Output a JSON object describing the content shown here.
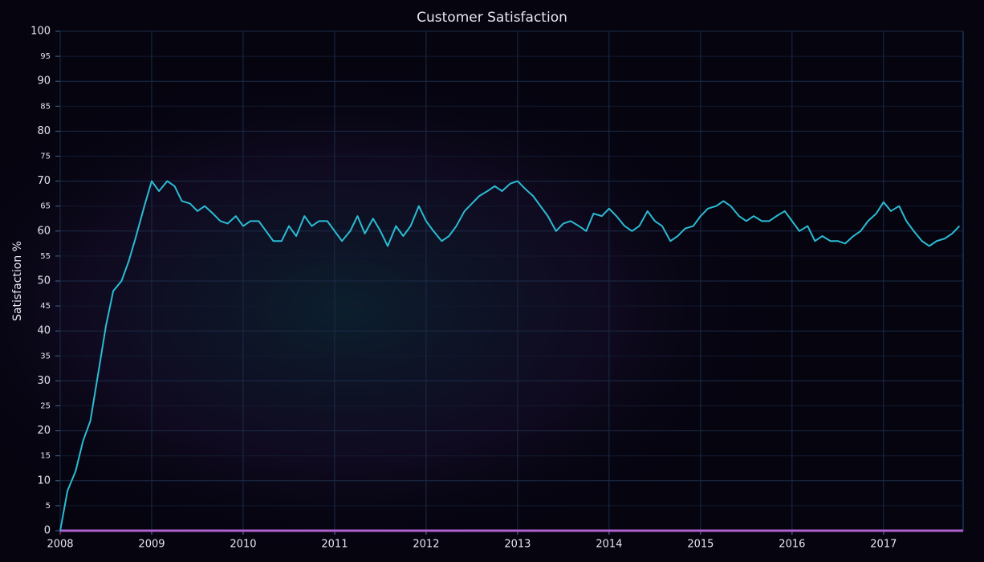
{
  "chart_data": {
    "type": "line",
    "title": "Customer Satisfaction",
    "y_label": "Satisfaction %",
    "x": [
      2008,
      2008.08,
      2008.17,
      2008.25,
      2008.33,
      2008.42,
      2008.5,
      2008.58,
      2008.67,
      2008.75,
      2008.83,
      2008.92,
      2009,
      2009.08,
      2009.17,
      2009.25,
      2009.33,
      2009.42,
      2009.5,
      2009.58,
      2009.67,
      2009.75,
      2009.83,
      2009.92,
      2010,
      2010.08,
      2010.17,
      2010.25,
      2010.33,
      2010.42,
      2010.5,
      2010.58,
      2010.67,
      2010.75,
      2010.83,
      2010.92,
      2011,
      2011.08,
      2011.17,
      2011.25,
      2011.33,
      2011.42,
      2011.5,
      2011.58,
      2011.67,
      2011.75,
      2011.83,
      2011.92,
      2012,
      2012.08,
      2012.17,
      2012.25,
      2012.33,
      2012.42,
      2012.5,
      2012.58,
      2012.67,
      2012.75,
      2012.83,
      2012.92,
      2013,
      2013.08,
      2013.17,
      2013.25,
      2013.33,
      2013.42,
      2013.5,
      2013.58,
      2013.67,
      2013.75,
      2013.83,
      2013.92,
      2014,
      2014.08,
      2014.17,
      2014.25,
      2014.33,
      2014.42,
      2014.5,
      2014.58,
      2014.67,
      2014.75,
      2014.83,
      2014.92,
      2015,
      2015.08,
      2015.17,
      2015.25,
      2015.33,
      2015.42,
      2015.5,
      2015.58,
      2015.67,
      2015.75,
      2015.83,
      2015.92,
      2016,
      2016.08,
      2016.17,
      2016.25,
      2016.33,
      2016.42,
      2016.5,
      2016.58,
      2016.67,
      2016.75,
      2016.83,
      2016.92,
      2017,
      2017.08,
      2017.17,
      2017.25,
      2017.33,
      2017.42,
      2017.5,
      2017.58,
      2017.67,
      2017.75,
      2017.83
    ],
    "series": [
      {
        "name": "Satisfaction",
        "color": "#2bbcd4",
        "values": [
          0,
          8,
          12,
          18,
          22,
          32,
          41,
          48,
          50,
          54,
          59,
          65,
          70,
          68,
          70,
          69,
          66,
          65.5,
          64,
          65,
          63.5,
          62,
          61.5,
          63,
          61,
          62,
          62,
          60,
          58,
          58,
          61,
          59,
          63,
          61,
          62,
          62,
          60,
          58,
          60,
          63,
          59.5,
          62.5,
          60,
          57,
          61,
          59,
          61,
          65,
          62,
          60,
          58,
          59,
          61,
          64,
          65.5,
          67,
          68,
          69,
          68,
          69.5,
          70,
          68.5,
          67,
          65,
          63,
          60,
          61.5,
          62,
          61,
          60,
          63.5,
          63,
          64.5,
          63,
          61,
          60,
          61,
          64,
          62,
          61,
          58,
          59,
          60.5,
          61,
          63,
          64.5,
          65,
          66,
          65,
          63,
          62,
          63,
          62,
          62,
          63,
          64,
          62,
          60,
          61,
          58,
          59,
          58,
          58,
          57.5,
          59,
          60,
          62,
          63.5,
          65.8,
          64,
          65,
          62,
          60,
          58,
          57,
          58,
          58.5,
          59.5,
          61
        ]
      }
    ],
    "xlim": [
      2008,
      2017.87
    ],
    "xticks": [
      2008,
      2009,
      2010,
      2011,
      2012,
      2013,
      2014,
      2015,
      2016,
      2017
    ],
    "ylim": [
      0,
      100
    ],
    "yticks": [
      0,
      5,
      10,
      15,
      20,
      25,
      30,
      35,
      40,
      45,
      50,
      55,
      60,
      65,
      70,
      75,
      80,
      85,
      90,
      95,
      100
    ],
    "grid": true
  }
}
